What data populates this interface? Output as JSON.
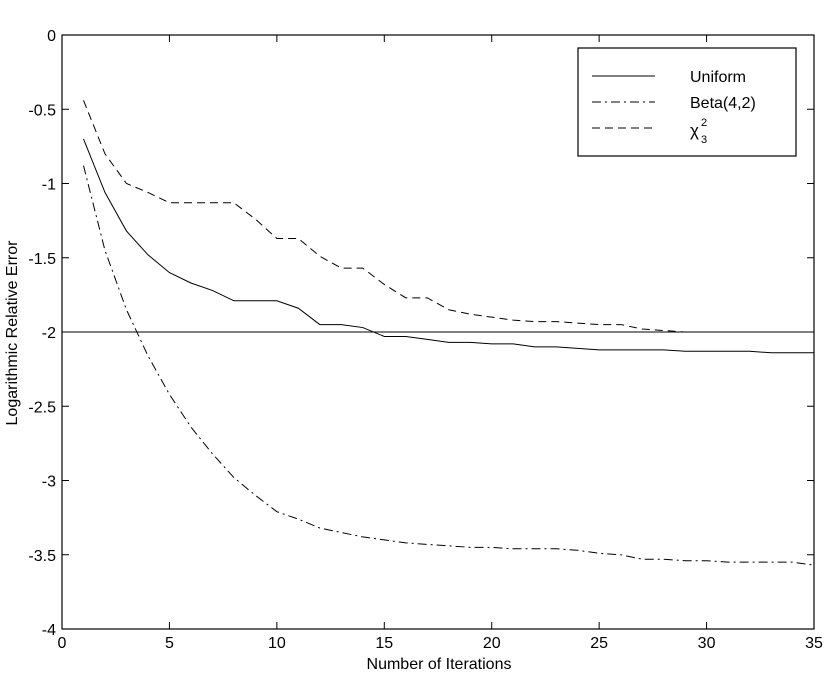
{
  "chart_data": {
    "type": "line",
    "title": "",
    "xlabel": "Number of Iterations",
    "ylabel": "Logarithmic Relative Error",
    "xlim": [
      0,
      35
    ],
    "ylim": [
      -4,
      0
    ],
    "xticks": [
      0,
      5,
      10,
      15,
      20,
      25,
      30,
      35
    ],
    "yticks": [
      0,
      -0.5,
      -1,
      -1.5,
      -2,
      -2.5,
      -3,
      -3.5,
      -4
    ],
    "xtick_labels": [
      "0",
      "5",
      "10",
      "15",
      "20",
      "25",
      "30",
      "35"
    ],
    "ytick_labels": [
      "0",
      "-0.5",
      "-1",
      "-1.5",
      "-2",
      "-2.5",
      "-3",
      "-3.5",
      "-4"
    ],
    "grid": false,
    "legend_position": "top-right",
    "reference_line": {
      "y": -2,
      "style": "solid"
    },
    "x": [
      1,
      2,
      3,
      4,
      5,
      6,
      7,
      8,
      9,
      10,
      11,
      12,
      13,
      14,
      15,
      16,
      17,
      18,
      19,
      20,
      21,
      22,
      23,
      24,
      25,
      26,
      27,
      28,
      29,
      30,
      31,
      32,
      33,
      34,
      35
    ],
    "series": [
      {
        "name": "Uniform",
        "style": "solid",
        "values": [
          -0.7,
          -1.06,
          -1.32,
          -1.48,
          -1.6,
          -1.67,
          -1.72,
          -1.79,
          -1.79,
          -1.79,
          -1.84,
          -1.95,
          -1.95,
          -1.97,
          -2.03,
          -2.03,
          -2.05,
          -2.07,
          -2.07,
          -2.08,
          -2.08,
          -2.1,
          -2.1,
          -2.11,
          -2.12,
          -2.12,
          -2.12,
          -2.12,
          -2.13,
          -2.13,
          -2.13,
          -2.13,
          -2.14,
          -2.14,
          -2.14
        ]
      },
      {
        "name": "Beta(4,2)",
        "style": "dashdot",
        "values": [
          -0.88,
          -1.45,
          -1.85,
          -2.16,
          -2.42,
          -2.64,
          -2.82,
          -2.98,
          -3.1,
          -3.21,
          -3.26,
          -3.32,
          -3.35,
          -3.38,
          -3.4,
          -3.42,
          -3.43,
          -3.44,
          -3.45,
          -3.45,
          -3.46,
          -3.46,
          -3.46,
          -3.47,
          -3.49,
          -3.5,
          -3.53,
          -3.53,
          -3.54,
          -3.54,
          -3.55,
          -3.55,
          -3.55,
          -3.55,
          -3.57
        ]
      },
      {
        "name": "χ²₃",
        "label_main": "χ",
        "label_sup": "2",
        "label_sub": "3",
        "style": "dashed",
        "values": [
          -0.44,
          -0.8,
          -1.0,
          -1.06,
          -1.13,
          -1.13,
          -1.13,
          -1.13,
          -1.24,
          -1.37,
          -1.37,
          -1.49,
          -1.57,
          -1.57,
          -1.68,
          -1.77,
          -1.77,
          -1.85,
          -1.88,
          -1.9,
          -1.92,
          -1.93,
          -1.93,
          -1.94,
          -1.95,
          -1.95,
          -1.98,
          -1.99,
          -2.0,
          -2.0,
          -2.0,
          -2.0,
          -2.0,
          -2.0,
          -2.0
        ]
      }
    ]
  }
}
